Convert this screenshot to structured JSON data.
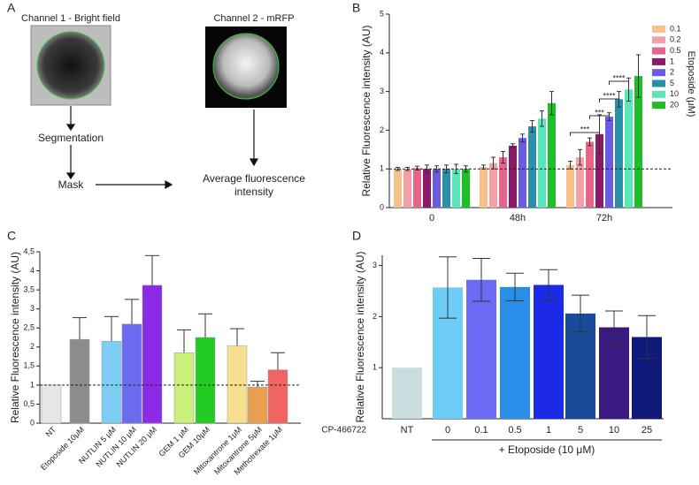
{
  "panel_a": {
    "label": "A",
    "channel1": "Channel 1 - Bright field",
    "channel2": "Channel 2 - mRFP",
    "step1": "Segmentation",
    "step2": "Mask",
    "step3": "Average fluorescence intensity"
  },
  "chart_data": [
    {
      "type": "grouped-bar",
      "panel_label": "B",
      "y_label": "Relative Fluorescence intensity (AU)",
      "legend_title": "Etoposide (μM)",
      "categories": [
        "0",
        "48h",
        "72h"
      ],
      "series": [
        {
          "name": "0.1",
          "color": "#f9c08a",
          "values": [
            1.0,
            1.05,
            1.1
          ],
          "errors": [
            0.04,
            0.05,
            0.1
          ]
        },
        {
          "name": "0.2",
          "color": "#f4a0a8",
          "values": [
            1.0,
            1.15,
            1.3
          ],
          "errors": [
            0.04,
            0.15,
            0.2
          ]
        },
        {
          "name": "0.5",
          "color": "#e8658a",
          "values": [
            1.02,
            1.3,
            1.7
          ],
          "errors": [
            0.05,
            0.15,
            0.1
          ]
        },
        {
          "name": "1",
          "color": "#8b1a6b",
          "values": [
            1.0,
            1.6,
            1.9
          ],
          "errors": [
            0.1,
            0.05,
            0.5
          ]
        },
        {
          "name": "2",
          "color": "#6a5be0",
          "values": [
            1.0,
            1.8,
            2.35
          ],
          "errors": [
            0.08,
            0.1,
            0.1
          ]
        },
        {
          "name": "5",
          "color": "#2a8fa8",
          "values": [
            1.0,
            2.1,
            2.8
          ],
          "errors": [
            0.1,
            0.15,
            0.2
          ]
        },
        {
          "name": "10",
          "color": "#58e8b8",
          "values": [
            1.0,
            2.3,
            3.05
          ],
          "errors": [
            0.12,
            0.2,
            0.3
          ]
        },
        {
          "name": "20",
          "color": "#1fbf2a",
          "values": [
            1.0,
            2.7,
            3.4
          ],
          "errors": [
            0.08,
            0.3,
            0.55
          ]
        }
      ],
      "error_direction": "both",
      "annotations": [
        "***",
        "***",
        "****",
        "****"
      ],
      "ylim": [
        0,
        5
      ],
      "yticks": [
        0,
        1,
        2,
        3,
        4,
        5
      ],
      "reference_line": 1
    },
    {
      "type": "bar",
      "panel_label": "C",
      "y_label": "Relative Fluorescence intensity (AU)",
      "categories": [
        "NT",
        "Etoposide 10μM",
        "NUTLIN 5 μM",
        "NUTLIN 10 μM",
        "NUTLIN 20 μM",
        "GEM 1 μM",
        "GEM 10μM",
        "Mitoxantrone 1μM",
        "Mitoxantrone 5μM",
        "Methotrexate 1μM"
      ],
      "values": [
        1,
        2.2,
        2.15,
        2.6,
        3.62,
        1.85,
        2.25,
        2.03,
        0.95,
        1.4
      ],
      "errors": [
        0,
        0.57,
        0.65,
        0.65,
        0.78,
        0.6,
        0.62,
        0.45,
        0.15,
        0.45
      ],
      "colors": [
        "#e6e6e6",
        "#8c8c8c",
        "#7dcdf5",
        "#6b6bf0",
        "#8b2be8",
        "#c8f07a",
        "#22cc22",
        "#f6e08f",
        "#e8a050",
        "#f06464"
      ],
      "error_direction": "up",
      "ylim": [
        0,
        4.5
      ],
      "yticks": [
        0,
        {
          "value": 0.5,
          "label": "0,5"
        },
        1,
        {
          "value": 1.5,
          "label": "1,5"
        },
        2,
        {
          "value": 2.5,
          "label": "2,5"
        },
        3,
        {
          "value": 3.5,
          "label": "3,5"
        },
        4,
        {
          "value": 4.5,
          "label": "4,5"
        }
      ],
      "reference_line": 1
    },
    {
      "type": "bar",
      "panel_label": "D",
      "y_label": "Relative Fluorescence intensity (AU)",
      "row_label": "CP-466722",
      "group_label": "+ Etoposide (10 μM)",
      "categories": [
        "NT",
        "0",
        "0.1",
        "0.5",
        "1",
        "5",
        "10",
        "25"
      ],
      "values": [
        1,
        2.57,
        2.72,
        2.58,
        2.62,
        2.06,
        1.79,
        1.6
      ],
      "errors": [
        0,
        0.6,
        0.42,
        0.27,
        0.3,
        0.36,
        0.32,
        0.42
      ],
      "colors": [
        "#c8dede",
        "#6ecdf7",
        "#6b6bf5",
        "#2a8ee8",
        "#1a2ae8",
        "#1a4a9a",
        "#3a1a80",
        "#0f1a7a"
      ],
      "error_direction": "both",
      "ylim": [
        0,
        3.2
      ],
      "yticks": [
        1,
        2,
        3
      ]
    }
  ]
}
